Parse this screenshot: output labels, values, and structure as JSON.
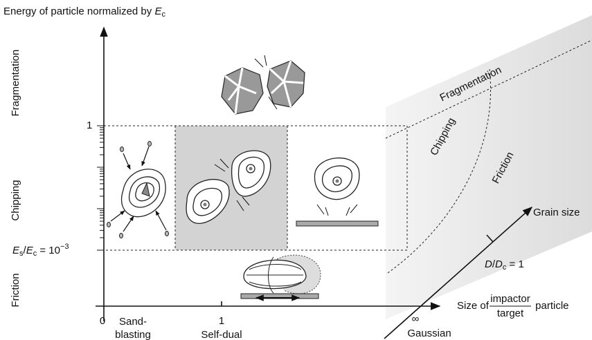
{
  "y_axis": {
    "label": {
      "text": "Energy of particle normalized by ",
      "symbol": "E",
      "subscript": "c"
    },
    "regimes": [
      "Fragmentation",
      "Chipping",
      "Friction"
    ],
    "tick_one": "1",
    "threshold": {
      "parts": [
        "E",
        "s",
        "/",
        "E",
        "c",
        " = 10",
        "−3"
      ]
    }
  },
  "x_axis": {
    "label": {
      "prefix": "Size of ",
      "numerator": "impactor",
      "denominator": "target",
      "suffix": " particle"
    },
    "ticks": [
      {
        "label": "0",
        "name": "Sand-",
        "name2": "blasting"
      },
      {
        "label": "1",
        "name": "Self-dual"
      },
      {
        "label": "∞",
        "name": "Gaussian"
      }
    ]
  },
  "grain_axis": {
    "label": "Grain size",
    "tick": {
      "parts": [
        "D",
        "/",
        "D",
        "c",
        " = 1"
      ]
    }
  },
  "plane": {
    "regimes": [
      "Fragmentation",
      "Chipping",
      "Friction"
    ]
  }
}
